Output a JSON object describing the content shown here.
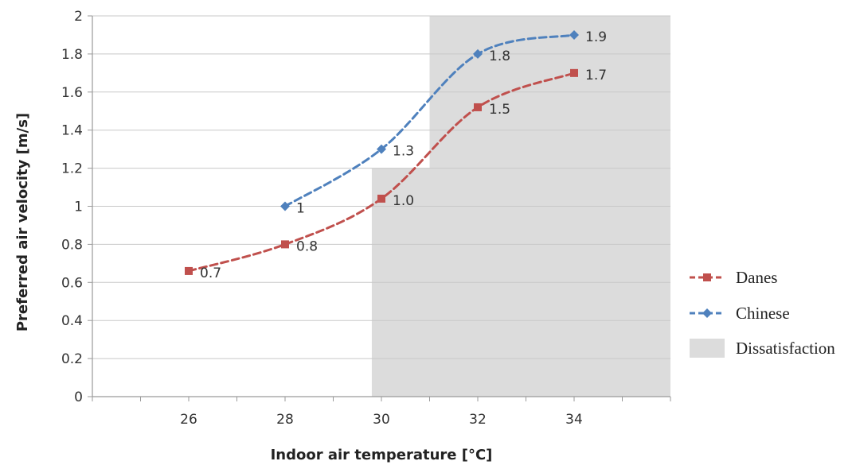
{
  "chart_data": {
    "type": "line",
    "xlabel": "Indoor air temperature [°C]",
    "ylabel": "Preferred air velocity [m/s]",
    "xlim": [
      24,
      36
    ],
    "ylim": [
      0,
      2
    ],
    "x_ticks": [
      26,
      28,
      30,
      32,
      34
    ],
    "x_tick_labels": [
      "26",
      "28",
      "30",
      "32",
      "34"
    ],
    "y_ticks": [
      0,
      0.2,
      0.4,
      0.6,
      0.8,
      1,
      1.2,
      1.4,
      1.6,
      1.8,
      2
    ],
    "y_tick_labels": [
      "0",
      "0.2",
      "0.4",
      "0.6",
      "0.8",
      "1",
      "1.2",
      "1.4",
      "1.6",
      "1.8",
      "2"
    ],
    "grid": true,
    "legend_position": "right",
    "series": [
      {
        "name": "Danes",
        "color": "#c0504d",
        "marker": "square",
        "line_style": "dashed",
        "x": [
          26,
          28,
          30,
          32,
          34
        ],
        "y": [
          0.66,
          0.8,
          1.04,
          1.52,
          1.7
        ],
        "labels": [
          "0.7",
          "0.8",
          "1.0",
          "1.5",
          "1.7"
        ]
      },
      {
        "name": "Chinese",
        "color": "#4f81bd",
        "marker": "diamond",
        "line_style": "dashed",
        "x": [
          28,
          30,
          32,
          34
        ],
        "y": [
          1.0,
          1.3,
          1.8,
          1.9
        ],
        "labels": [
          "1",
          "1.3",
          "1.8",
          "1.9"
        ]
      }
    ],
    "regions": [
      {
        "name": "Dissatisfaction",
        "color": "#dcdcdc",
        "polygon": [
          [
            29.8,
            0
          ],
          [
            29.8,
            1.2
          ],
          [
            31,
            1.2
          ],
          [
            31,
            2
          ],
          [
            36,
            2
          ],
          [
            36,
            0
          ]
        ]
      }
    ],
    "legend": [
      "Danes",
      "Chinese",
      "Dissatisfaction"
    ]
  }
}
